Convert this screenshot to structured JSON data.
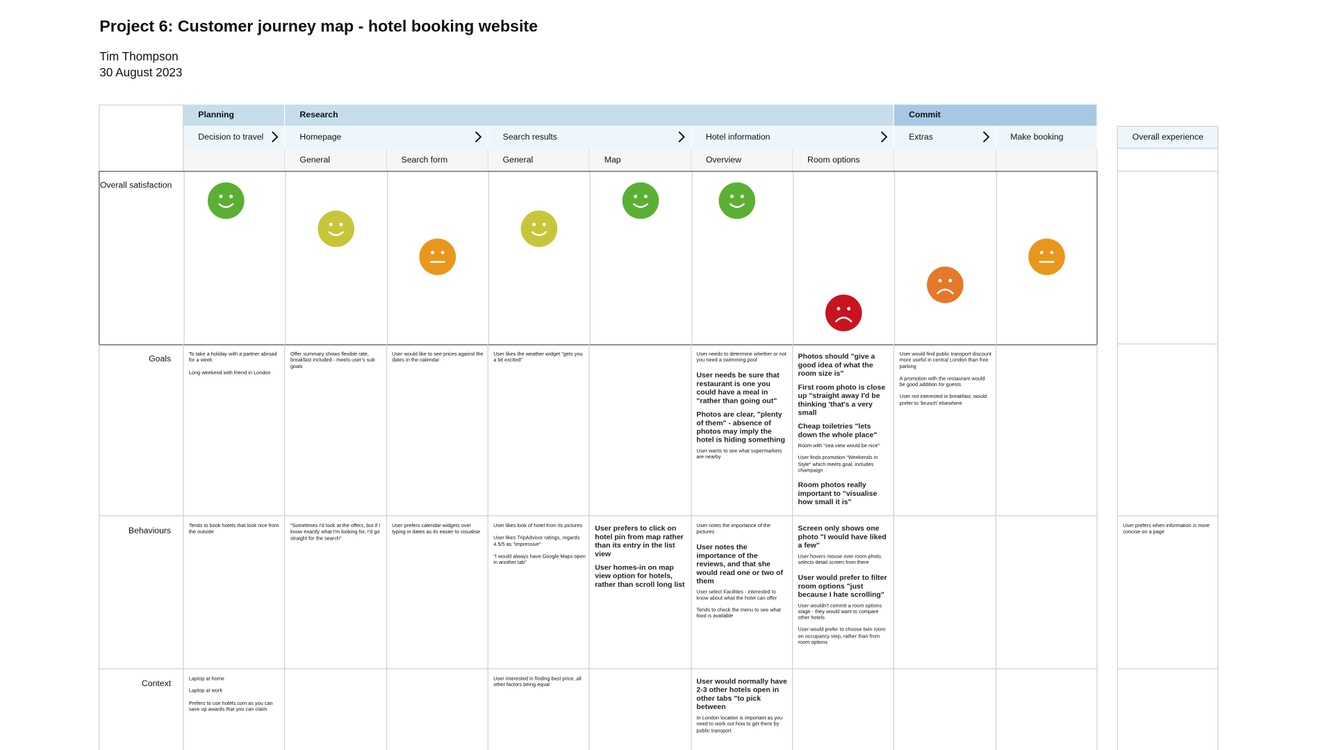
{
  "header": {
    "title": "Project 6: Customer journey map - hotel booking website",
    "author": "Tim Thompson",
    "date": "30 August 2023"
  },
  "phases": [
    {
      "label": "Planning",
      "span": 1
    },
    {
      "label": "Research",
      "span": 6
    },
    {
      "label": "Commit",
      "span": 2
    }
  ],
  "steps": [
    {
      "label": "Decision to travel",
      "span": 1
    },
    {
      "label": "Homepage",
      "span": 2
    },
    {
      "label": "Search results",
      "span": 2
    },
    {
      "label": "Hotel information",
      "span": 2
    },
    {
      "label": "Extras",
      "span": 1
    },
    {
      "label": "Make booking",
      "span": 1
    }
  ],
  "substeps": [
    null,
    "General",
    "Search form",
    "General",
    "Map",
    "Overview",
    "Room options",
    null,
    null
  ],
  "overall_column": "Overall experience",
  "satisfaction": {
    "label": "Overall satisfaction",
    "faces": [
      {
        "score": 5,
        "color": "#5bb034"
      },
      {
        "score": 4,
        "color": "#c7c63b"
      },
      {
        "score": 3,
        "color": "#e8971c"
      },
      {
        "score": 4,
        "color": "#c7c63b"
      },
      {
        "score": 5,
        "color": "#5bb034"
      },
      {
        "score": 5,
        "color": "#5bb034"
      },
      {
        "score": 1,
        "color": "#c8141f"
      },
      {
        "score": 2,
        "color": "#e6782b"
      },
      {
        "score": 3,
        "color": "#e8971c"
      }
    ]
  },
  "lanes": [
    {
      "label": "Goals",
      "cells": [
        [
          {
            "text": "To take a holiday with a partner abroad for a week"
          },
          {
            "text": "Long weekend with friend in London"
          }
        ],
        [
          {
            "text": "Offer summary shows flexible rate, breakfast included - meets user's sub goals"
          }
        ],
        [
          {
            "text": "User would like to see prices against the dates in the calendar"
          }
        ],
        [
          {
            "text": "User likes the weather widget \"gets you a bit excited\""
          }
        ],
        [],
        [
          {
            "text": "User needs to determine whether or not you need a swimming pool"
          },
          {
            "text": "User needs be sure that restaurant is one you could have a meal in \"rather than going out\"",
            "large": true
          },
          {
            "text": "Photos are clear, \"plenty of them\" - absence of photos may imply the hotel is hiding something",
            "large": true
          },
          {
            "text": "User wants to see what supermarkets are nearby"
          }
        ],
        [
          {
            "text": "Photos should \"give a good idea of what the room size is\"",
            "large": true
          },
          {
            "text": "First room photo is close up \"straight away I'd be thinking 'that's a very small",
            "large": true
          },
          {
            "text": "Cheap toiletries \"lets down the whole place\"",
            "large": true
          },
          {
            "text": "Room with \"sea view would be nice\""
          },
          {
            "text": "User finds promotion \"Weekends in Style\" which meets goal, includes champaign"
          },
          {
            "text": "Room photos really important to \"visualise how small it is\"",
            "large": true
          }
        ],
        [
          {
            "text": "User would find public transport discount more useful in central London than free parking"
          },
          {
            "text": "A promotion with the restaurant would be good addition for guests"
          },
          {
            "text": "User not interested in breakfast, would prefer to 'brunch' elsewhere"
          }
        ],
        []
      ],
      "overall": []
    },
    {
      "label": "Behaviours",
      "cells": [
        [
          {
            "text": "Tends to book hotels that look nice from the outside"
          }
        ],
        [
          {
            "text": "\"Sometimes I'd look at the offers, but if I know exactly what I'm looking for, I'd go straight for the search\""
          }
        ],
        [
          {
            "text": "User prefers calendar widgets over typing in dates as its easier to visualise"
          }
        ],
        [
          {
            "text": "User likes look of hotel from its pictures"
          },
          {
            "text": "User likes TripAdvisor ratings, regards 4.5/5 as \"impressive\""
          },
          {
            "text": "\"I would always have Google Maps open in another tab\""
          }
        ],
        [
          {
            "text": "User prefers to click on hotel pin from map rather than its entry in the list view",
            "large": true
          },
          {
            "text": "User homes-in on map view option for hotels, rather than scroll long list",
            "large": true
          }
        ],
        [
          {
            "text": "User notes the importance of the pictures"
          },
          {
            "text": "User notes the importance of the reviews, and that she would read one or two of them",
            "large": true
          },
          {
            "text": "User select Facilities - interested to know about what the hotel can offer"
          },
          {
            "text": "Tends to check the menu to see what food is available"
          }
        ],
        [
          {
            "text": "Screen only shows one photo \"I would have liked a few\"",
            "large": true
          },
          {
            "text": "User hovers mouse over room photo, selects detail screen from there"
          },
          {
            "text": "User would prefer to filter room options \"just because I hate scrolling\"",
            "large": true
          },
          {
            "text": "User wouldn't commit a room options stage - they would want to compare other hotels"
          },
          {
            "text": "User would prefer to choose twin room on occupancy step, rather than from room options"
          }
        ],
        [],
        []
      ],
      "overall": [
        {
          "text": "User prefers when information is more concise on a page"
        }
      ]
    },
    {
      "label": "Context",
      "cells": [
        [
          {
            "text": "Laptop at home"
          },
          {
            "text": "Laptop at work"
          },
          {
            "text": "Prefers to use hotels.com as you can save up awards that you can claim"
          }
        ],
        [],
        [],
        [
          {
            "text": "User interested in finding best price, all other factors being equal"
          }
        ],
        [],
        [
          {
            "text": "User would normally have 2-3 other hotels open in other tabs \"to pick between",
            "large": true
          },
          {
            "text": "In London location is important as you need to work out how to get there by public transport"
          }
        ],
        [],
        [],
        []
      ],
      "overall": []
    }
  ]
}
